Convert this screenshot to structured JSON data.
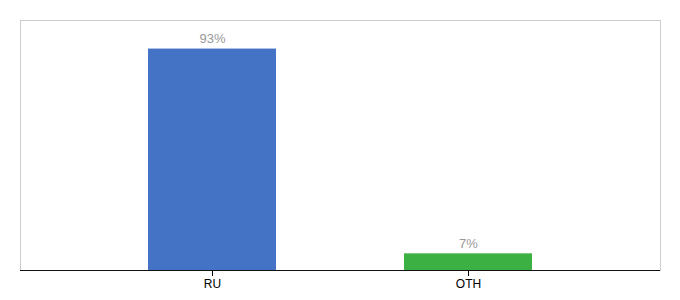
{
  "chart_data": {
    "type": "bar",
    "categories": [
      "RU",
      "OTH"
    ],
    "values": [
      93,
      7
    ],
    "value_labels": [
      "93%",
      "7%"
    ],
    "colors": [
      "#4472c4",
      "#3cb043"
    ],
    "ylim": [
      0,
      105
    ],
    "data_labels": true,
    "tick_labels": "x"
  }
}
